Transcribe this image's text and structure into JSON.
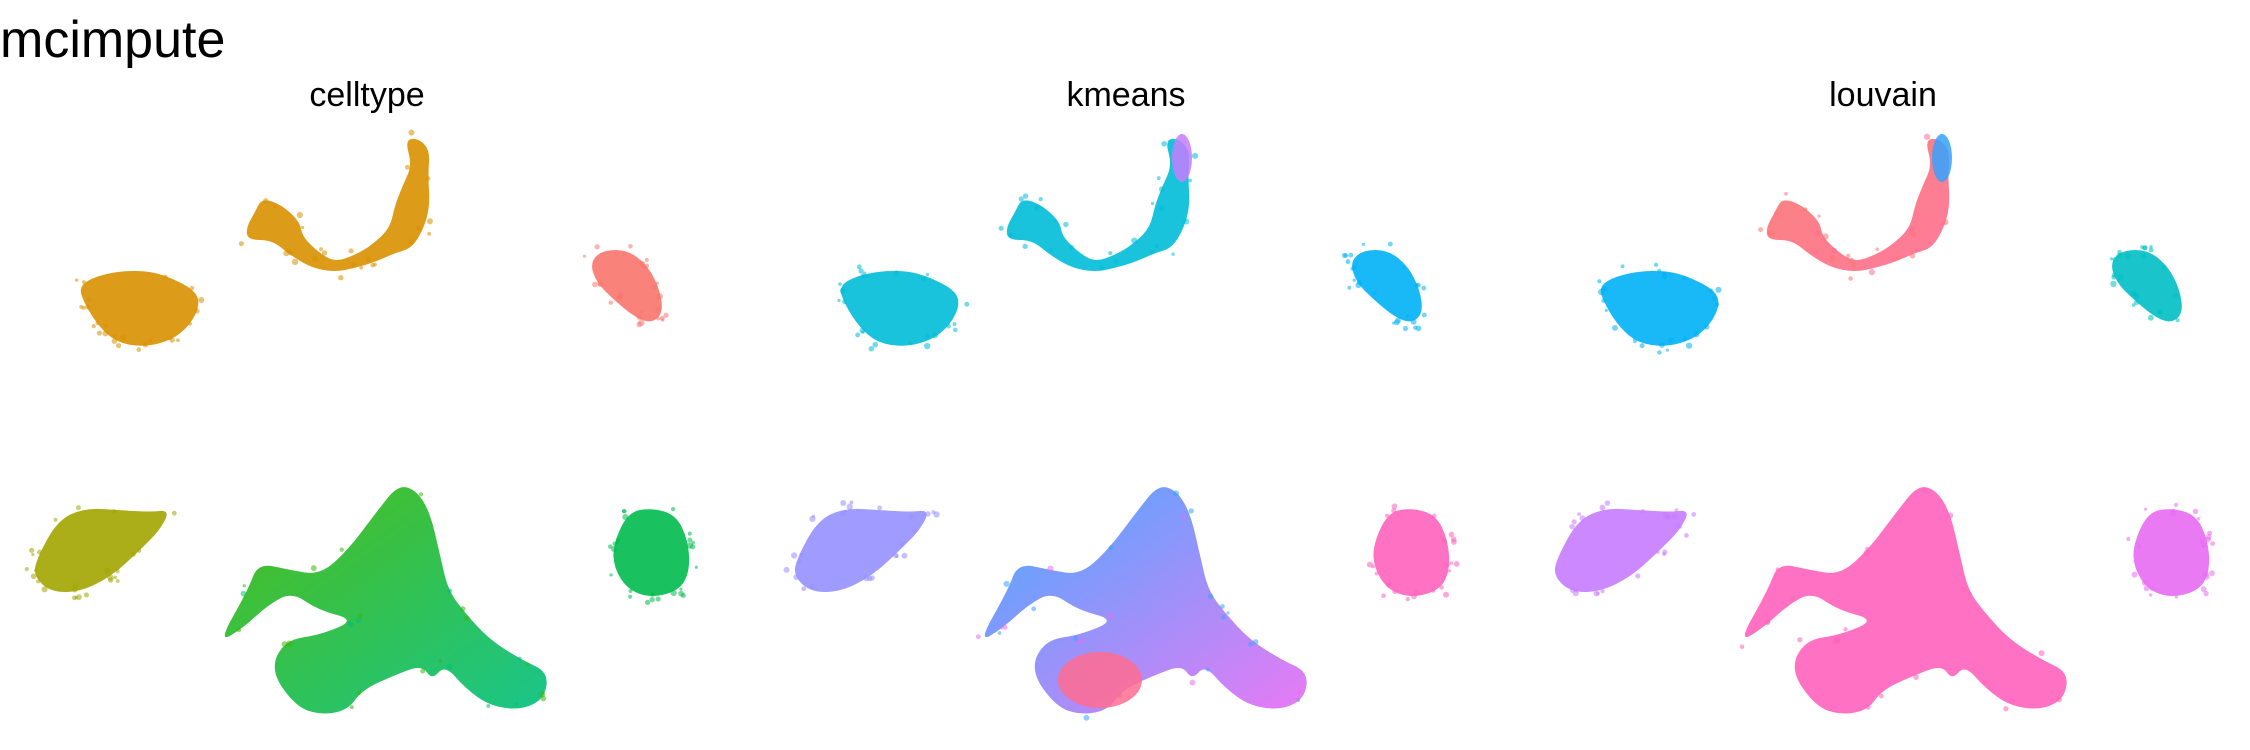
{
  "figure": {
    "title": "mcimpute"
  },
  "chart_data": [
    {
      "type": "scatter",
      "title": "celltype",
      "xlabel": "",
      "ylabel": "",
      "grid": false,
      "axes": false,
      "legend": "none",
      "clusters": [
        {
          "id": "A",
          "color": "#D89000"
        },
        {
          "id": "B",
          "color": "#D89000"
        },
        {
          "id": "C",
          "color": "#F8766D"
        },
        {
          "id": "D",
          "color": "#A3A500"
        },
        {
          "id": "E",
          "color": "#39B600",
          "gradient": "#00BF7D"
        },
        {
          "id": "F",
          "color": "#00BB4E"
        }
      ]
    },
    {
      "type": "scatter",
      "title": "kmeans",
      "xlabel": "",
      "ylabel": "",
      "grid": false,
      "axes": false,
      "legend": "none",
      "clusters": [
        {
          "id": "A",
          "color": "#00BCD8"
        },
        {
          "id": "B",
          "color": "#00BCD8",
          "tip": "#C77CFF"
        },
        {
          "id": "C",
          "color": "#00B0F6"
        },
        {
          "id": "D",
          "color": "#9590FF"
        },
        {
          "id": "E",
          "color": "#35A2FF",
          "gradient": "#E76BF3",
          "accent": "#FF6C91"
        },
        {
          "id": "F",
          "color": "#FF62BC"
        }
      ]
    },
    {
      "type": "scatter",
      "title": "louvain",
      "xlabel": "",
      "ylabel": "",
      "grid": false,
      "axes": false,
      "legend": "none",
      "clusters": [
        {
          "id": "A",
          "color": "#00B0F6"
        },
        {
          "id": "B",
          "color": "#F8766D",
          "gradient": "#FF6C91",
          "tip": "#35A2FF"
        },
        {
          "id": "C",
          "color": "#00BFC4"
        },
        {
          "id": "D",
          "color": "#C77CFF"
        },
        {
          "id": "E",
          "color": "#FF62BC"
        },
        {
          "id": "F",
          "color": "#E76BF3"
        }
      ]
    }
  ]
}
